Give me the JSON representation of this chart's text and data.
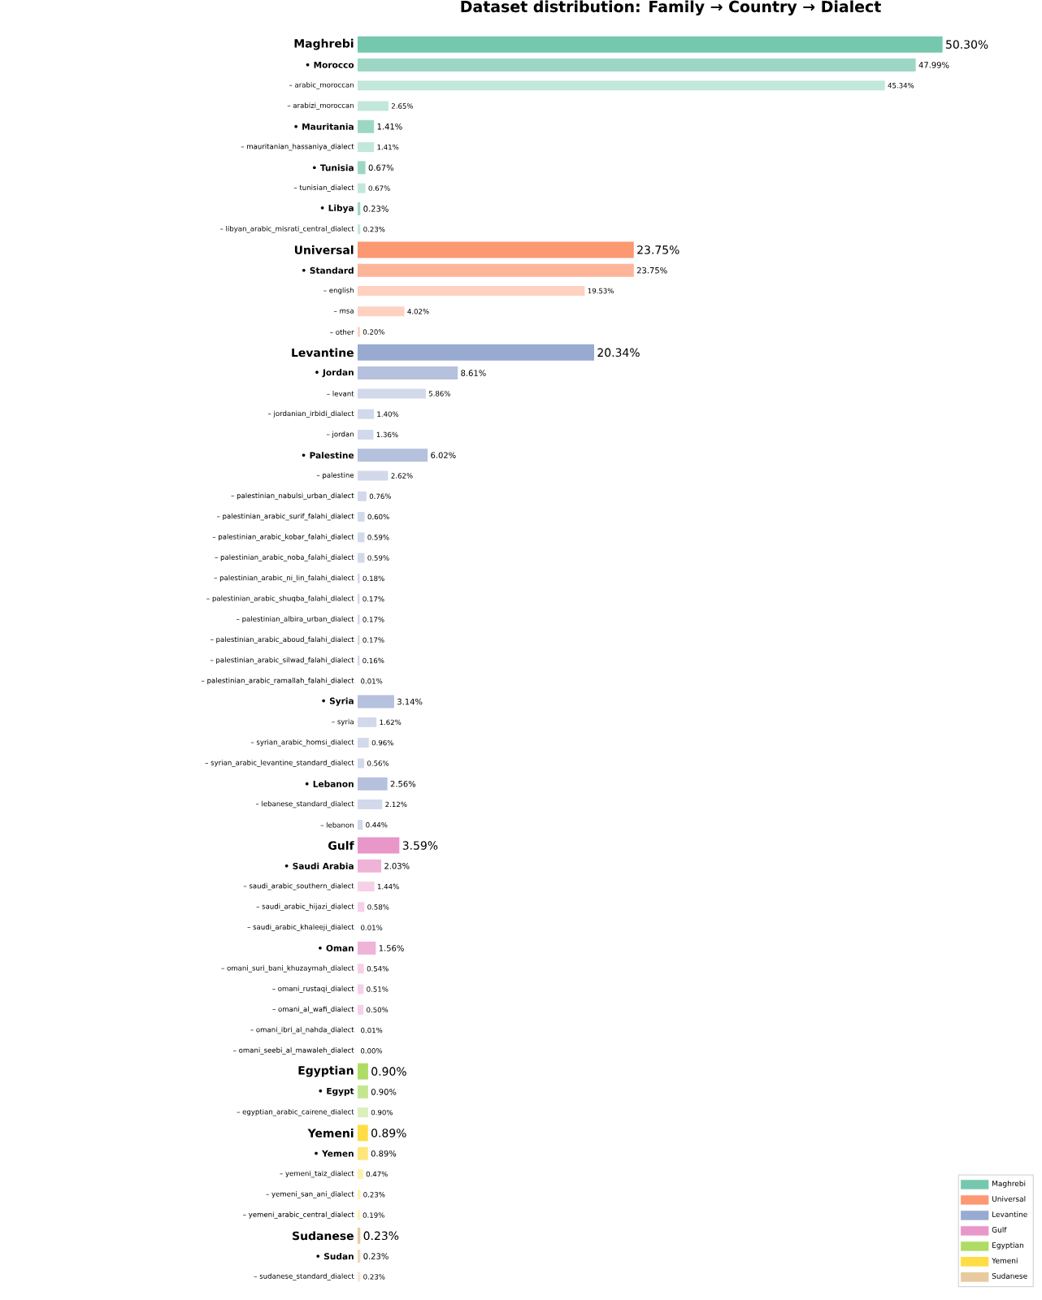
{
  "chart_data": {
    "type": "bar",
    "orientation": "horizontal",
    "title": "Dataset distribution: Family → Country → Dialect",
    "tick_labels": "y",
    "legend": "bottom right",
    "categories": [
      "Maghrebi",
      "• Morocco",
      "– arabic_moroccan",
      "– arabizi_moroccan",
      "• Mauritania",
      "– mauritanian_hassaniya_dialect",
      "• Tunisia",
      "– tunisian_dialect",
      "• Libya",
      "– libyan_arabic_misrati_central_dialect",
      "Universal",
      "• Standard",
      "– english",
      "– msa",
      "– other",
      "Levantine",
      "• Jordan",
      "– levant",
      "– jordanian_irbidi_dialect",
      "– jordan",
      "• Palestine",
      "– palestine",
      "– palestinian_nabulsi_urban_dialect",
      "– palestinian_arabic_surif_falahi_dialect",
      "– palestinian_arabic_kobar_falahi_dialect",
      "– palestinian_arabic_noba_falahi_dialect",
      "– palestinian_arabic_ni_lin_falahi_dialect",
      "– palestinian_arabic_shuqba_falahi_dialect",
      "– palestinian_albira_urban_dialect",
      "– palestinian_arabic_aboud_falahi_dialect",
      "– palestinian_arabic_silwad_falahi_dialect",
      "– palestinian_arabic_ramallah_falahi_dialect",
      "• Syria",
      "– syria",
      "– syrian_arabic_homsi_dialect",
      "– syrian_arabic_levantine_standard_dialect",
      "• Lebanon",
      "– lebanese_standard_dialect",
      "– lebanon",
      "Gulf",
      "• Saudi Arabia",
      "– saudi_arabic_southern_dialect",
      "– saudi_arabic_hijazi_dialect",
      "– saudi_arabic_khaleeji_dialect",
      "• Oman",
      "– omani_suri_bani_khuzaymah_dialect",
      "– omani_rustaqi_dialect",
      "– omani_al_wafi_dialect",
      "– omani_ibri_al_nahda_dialect",
      "– omani_seebi_al_mawaleh_dialect",
      "Egyptian",
      "• Egypt",
      "– egyptian_arabic_cairene_dialect",
      "Yemeni",
      "• Yemen",
      "– yemeni_taiz_dialect",
      "– yemeni_san_ani_dialect",
      "– yemeni_arabic_central_dialect",
      "Sudanese",
      "• Sudan",
      "– sudanese_standard_dialect"
    ],
    "series": [
      {
        "name": "Maghrebi",
        "color": "#75c8ae",
        "values": [
          50.3,
          47.99,
          45.34,
          2.65,
          1.41,
          1.41,
          0.67,
          0.67,
          0.23,
          0.23,
          null,
          null,
          null,
          null,
          null,
          null,
          null,
          null,
          null,
          null,
          null,
          null,
          null,
          null,
          null,
          null,
          null,
          null,
          null,
          null,
          null,
          null,
          null,
          null,
          null,
          null,
          null,
          null,
          null,
          null,
          null,
          null,
          null,
          null,
          null,
          null,
          null,
          null,
          null,
          null,
          null,
          null,
          null,
          null,
          null,
          null,
          null,
          null,
          null,
          null,
          null
        ],
        "colors": [
          "#75c8ae",
          "#9cd7c5",
          "#c2e7db",
          "#c2e7db",
          "#9cd7c5",
          "#c2e7db",
          "#9cd7c5",
          "#c2e7db",
          "#9cd7c5",
          "#c2e7db",
          null,
          null,
          null,
          null,
          null,
          null,
          null,
          null,
          null,
          null,
          null,
          null,
          null,
          null,
          null,
          null,
          null,
          null,
          null,
          null,
          null,
          null,
          null,
          null,
          null,
          null,
          null,
          null,
          null,
          null,
          null,
          null,
          null,
          null,
          null,
          null,
          null,
          null,
          null,
          null,
          null,
          null,
          null,
          null,
          null,
          null,
          null,
          null,
          null,
          null,
          null
        ],
        "value_labels": [
          "50.30%",
          "47.99%",
          "45.34%",
          "2.65%",
          "1.41%",
          "1.41%",
          "0.67%",
          "0.67%",
          "0.23%",
          "0.23%",
          null,
          null,
          null,
          null,
          null,
          null,
          null,
          null,
          null,
          null,
          null,
          null,
          null,
          null,
          null,
          null,
          null,
          null,
          null,
          null,
          null,
          null,
          null,
          null,
          null,
          null,
          null,
          null,
          null,
          null,
          null,
          null,
          null,
          null,
          null,
          null,
          null,
          null,
          null,
          null,
          null,
          null,
          null,
          null,
          null,
          null,
          null,
          null,
          null,
          null,
          null
        ]
      },
      {
        "name": "Universal",
        "color": "#fc9872",
        "values": [
          null,
          null,
          null,
          null,
          null,
          null,
          null,
          null,
          null,
          null,
          23.75,
          23.75,
          19.53,
          4.02,
          0.2,
          null,
          null,
          null,
          null,
          null,
          null,
          null,
          null,
          null,
          null,
          null,
          null,
          null,
          null,
          null,
          null,
          null,
          null,
          null,
          null,
          null,
          null,
          null,
          null,
          null,
          null,
          null,
          null,
          null,
          null,
          null,
          null,
          null,
          null,
          null,
          null,
          null,
          null,
          null,
          null,
          null,
          null,
          null,
          null,
          null,
          null
        ],
        "colors": [
          null,
          null,
          null,
          null,
          null,
          null,
          null,
          null,
          null,
          null,
          "#fc9872",
          "#fdb599",
          "#fed1c0",
          "#fed1c0",
          "#fed1c0",
          null,
          null,
          null,
          null,
          null,
          null,
          null,
          null,
          null,
          null,
          null,
          null,
          null,
          null,
          null,
          null,
          null,
          null,
          null,
          null,
          null,
          null,
          null,
          null,
          null,
          null,
          null,
          null,
          null,
          null,
          null,
          null,
          null,
          null,
          null,
          null,
          null,
          null,
          null,
          null,
          null,
          null,
          null,
          null,
          null,
          null
        ],
        "value_labels": [
          null,
          null,
          null,
          null,
          null,
          null,
          null,
          null,
          null,
          null,
          "23.75%",
          "23.75%",
          "19.53%",
          "4.02%",
          "0.20%",
          null,
          null,
          null,
          null,
          null,
          null,
          null,
          null,
          null,
          null,
          null,
          null,
          null,
          null,
          null,
          null,
          null,
          null,
          null,
          null,
          null,
          null,
          null,
          null,
          null,
          null,
          null,
          null,
          null,
          null,
          null,
          null,
          null,
          null,
          null,
          null,
          null,
          null,
          null,
          null,
          null,
          null,
          null,
          null,
          null,
          null
        ]
      },
      {
        "name": "Levantine",
        "color": "#98aad0",
        "values": [
          null,
          null,
          null,
          null,
          null,
          null,
          null,
          null,
          null,
          null,
          null,
          null,
          null,
          null,
          null,
          20.34,
          8.61,
          5.86,
          1.4,
          1.36,
          6.02,
          2.62,
          0.76,
          0.6,
          0.59,
          0.59,
          0.18,
          0.17,
          0.17,
          0.17,
          0.16,
          0.01,
          3.14,
          1.62,
          0.96,
          0.56,
          2.56,
          2.12,
          0.44,
          null,
          null,
          null,
          null,
          null,
          null,
          null,
          null,
          null,
          null,
          null,
          null,
          null,
          null,
          null,
          null,
          null,
          null,
          null,
          null,
          null,
          null
        ],
        "colors": [
          null,
          null,
          null,
          null,
          null,
          null,
          null,
          null,
          null,
          null,
          null,
          null,
          null,
          null,
          null,
          "#98aad0",
          "#b5c1dd",
          "#d1d9ea",
          "#d1d9ea",
          "#d1d9ea",
          "#b5c1dd",
          "#d1d9ea",
          "#d1d9ea",
          "#d1d9ea",
          "#d1d9ea",
          "#d1d9ea",
          "#d1d9ea",
          "#d1d9ea",
          "#d1d9ea",
          "#d1d9ea",
          "#d1d9ea",
          "#d1d9ea",
          "#b5c1dd",
          "#d1d9ea",
          "#d1d9ea",
          "#d1d9ea",
          "#b5c1dd",
          "#d1d9ea",
          "#d1d9ea",
          null,
          null,
          null,
          null,
          null,
          null,
          null,
          null,
          null,
          null,
          null,
          null,
          null,
          null,
          null,
          null,
          null,
          null,
          null,
          null,
          null,
          null
        ],
        "value_labels": [
          null,
          null,
          null,
          null,
          null,
          null,
          null,
          null,
          null,
          null,
          null,
          null,
          null,
          null,
          null,
          "20.34%",
          "8.61%",
          "5.86%",
          "1.40%",
          "1.36%",
          "6.02%",
          "2.62%",
          "0.76%",
          "0.60%",
          "0.59%",
          "0.59%",
          "0.18%",
          "0.17%",
          "0.17%",
          "0.17%",
          "0.16%",
          "0.01%",
          "3.14%",
          "1.62%",
          "0.96%",
          "0.56%",
          "2.56%",
          "2.12%",
          "0.44%",
          null,
          null,
          null,
          null,
          null,
          null,
          null,
          null,
          null,
          null,
          null,
          null,
          null,
          null,
          null,
          null,
          null,
          null,
          null,
          null,
          null,
          null
        ]
      },
      {
        "name": "Gulf",
        "color": "#e996c9",
        "values": [
          null,
          null,
          null,
          null,
          null,
          null,
          null,
          null,
          null,
          null,
          null,
          null,
          null,
          null,
          null,
          null,
          null,
          null,
          null,
          null,
          null,
          null,
          null,
          null,
          null,
          null,
          null,
          null,
          null,
          null,
          null,
          null,
          null,
          null,
          null,
          null,
          null,
          null,
          null,
          3.59,
          2.03,
          1.44,
          0.58,
          0.01,
          1.56,
          0.54,
          0.51,
          0.5,
          0.01,
          0.0,
          null,
          null,
          null,
          null,
          null,
          null,
          null,
          null,
          null,
          null,
          null
        ],
        "colors": [
          null,
          null,
          null,
          null,
          null,
          null,
          null,
          null,
          null,
          null,
          null,
          null,
          null,
          null,
          null,
          null,
          null,
          null,
          null,
          null,
          null,
          null,
          null,
          null,
          null,
          null,
          null,
          null,
          null,
          null,
          null,
          null,
          null,
          null,
          null,
          null,
          null,
          null,
          null,
          "#e996c9",
          "#efb3d8",
          "#f5d0e7",
          "#f5d0e7",
          "#f5d0e7",
          "#efb3d8",
          "#f5d0e7",
          "#f5d0e7",
          "#f5d0e7",
          "#f5d0e7",
          "#f5d0e7",
          null,
          null,
          null,
          null,
          null,
          null,
          null,
          null,
          null,
          null,
          null
        ],
        "value_labels": [
          null,
          null,
          null,
          null,
          null,
          null,
          null,
          null,
          null,
          null,
          null,
          null,
          null,
          null,
          null,
          null,
          null,
          null,
          null,
          null,
          null,
          null,
          null,
          null,
          null,
          null,
          null,
          null,
          null,
          null,
          null,
          null,
          null,
          null,
          null,
          null,
          null,
          null,
          null,
          "3.59%",
          "2.03%",
          "1.44%",
          "0.58%",
          "0.01%",
          "1.56%",
          "0.54%",
          "0.51%",
          "0.50%",
          "0.01%",
          "0.00%",
          null,
          null,
          null,
          null,
          null,
          null,
          null,
          null,
          null,
          null,
          null
        ]
      },
      {
        "name": "Egyptian",
        "color": "#afdc65",
        "values": [
          null,
          null,
          null,
          null,
          null,
          null,
          null,
          null,
          null,
          null,
          null,
          null,
          null,
          null,
          null,
          null,
          null,
          null,
          null,
          null,
          null,
          null,
          null,
          null,
          null,
          null,
          null,
          null,
          null,
          null,
          null,
          null,
          null,
          null,
          null,
          null,
          null,
          null,
          null,
          null,
          null,
          null,
          null,
          null,
          null,
          null,
          null,
          null,
          null,
          null,
          0.9,
          0.9,
          0.9,
          null,
          null,
          null,
          null,
          null,
          null,
          null,
          null
        ],
        "colors": [
          null,
          null,
          null,
          null,
          null,
          null,
          null,
          null,
          null,
          null,
          null,
          null,
          null,
          null,
          null,
          null,
          null,
          null,
          null,
          null,
          null,
          null,
          null,
          null,
          null,
          null,
          null,
          null,
          null,
          null,
          null,
          null,
          null,
          null,
          null,
          null,
          null,
          null,
          null,
          null,
          null,
          null,
          null,
          null,
          null,
          null,
          null,
          null,
          null,
          null,
          "#afdc65",
          "#c5e690",
          "#dbefbb",
          null,
          null,
          null,
          null,
          null,
          null,
          null,
          null
        ],
        "value_labels": [
          null,
          null,
          null,
          null,
          null,
          null,
          null,
          null,
          null,
          null,
          null,
          null,
          null,
          null,
          null,
          null,
          null,
          null,
          null,
          null,
          null,
          null,
          null,
          null,
          null,
          null,
          null,
          null,
          null,
          null,
          null,
          null,
          null,
          null,
          null,
          null,
          null,
          null,
          null,
          null,
          null,
          null,
          null,
          null,
          null,
          null,
          null,
          null,
          null,
          null,
          "0.90%",
          "0.90%",
          "0.90%",
          null,
          null,
          null,
          null,
          null,
          null,
          null,
          null
        ]
      },
      {
        "name": "Yemeni",
        "color": "#ffdd44",
        "values": [
          null,
          null,
          null,
          null,
          null,
          null,
          null,
          null,
          null,
          null,
          null,
          null,
          null,
          null,
          null,
          null,
          null,
          null,
          null,
          null,
          null,
          null,
          null,
          null,
          null,
          null,
          null,
          null,
          null,
          null,
          null,
          null,
          null,
          null,
          null,
          null,
          null,
          null,
          null,
          null,
          null,
          null,
          null,
          null,
          null,
          null,
          null,
          null,
          null,
          null,
          null,
          null,
          null,
          0.89,
          0.89,
          0.47,
          0.23,
          0.19,
          null,
          null,
          null
        ],
        "colors": [
          null,
          null,
          null,
          null,
          null,
          null,
          null,
          null,
          null,
          null,
          null,
          null,
          null,
          null,
          null,
          null,
          null,
          null,
          null,
          null,
          null,
          null,
          null,
          null,
          null,
          null,
          null,
          null,
          null,
          null,
          null,
          null,
          null,
          null,
          null,
          null,
          null,
          null,
          null,
          null,
          null,
          null,
          null,
          null,
          null,
          null,
          null,
          null,
          null,
          null,
          null,
          null,
          null,
          "#ffdd44",
          "#ffe678",
          "#fff0ac",
          "#fff0ac",
          "#fff0ac",
          null,
          null,
          null
        ],
        "value_labels": [
          null,
          null,
          null,
          null,
          null,
          null,
          null,
          null,
          null,
          null,
          null,
          null,
          null,
          null,
          null,
          null,
          null,
          null,
          null,
          null,
          null,
          null,
          null,
          null,
          null,
          null,
          null,
          null,
          null,
          null,
          null,
          null,
          null,
          null,
          null,
          null,
          null,
          null,
          null,
          null,
          null,
          null,
          null,
          null,
          null,
          null,
          null,
          null,
          null,
          null,
          null,
          null,
          null,
          "0.89%",
          "0.89%",
          "0.47%",
          "0.23%",
          "0.19%",
          null,
          null,
          null
        ]
      },
      {
        "name": "Sudanese",
        "color": "#e7ca9f",
        "values": [
          null,
          null,
          null,
          null,
          null,
          null,
          null,
          null,
          null,
          null,
          null,
          null,
          null,
          null,
          null,
          null,
          null,
          null,
          null,
          null,
          null,
          null,
          null,
          null,
          null,
          null,
          null,
          null,
          null,
          null,
          null,
          null,
          null,
          null,
          null,
          null,
          null,
          null,
          null,
          null,
          null,
          null,
          null,
          null,
          null,
          null,
          null,
          null,
          null,
          null,
          null,
          null,
          null,
          null,
          null,
          null,
          null,
          null,
          0.23,
          0.23,
          0.23
        ],
        "colors": [
          null,
          null,
          null,
          null,
          null,
          null,
          null,
          null,
          null,
          null,
          null,
          null,
          null,
          null,
          null,
          null,
          null,
          null,
          null,
          null,
          null,
          null,
          null,
          null,
          null,
          null,
          null,
          null,
          null,
          null,
          null,
          null,
          null,
          null,
          null,
          null,
          null,
          null,
          null,
          null,
          null,
          null,
          null,
          null,
          null,
          null,
          null,
          null,
          null,
          null,
          null,
          null,
          null,
          null,
          null,
          null,
          null,
          null,
          "#e7ca9f",
          "#eed9b9",
          "#f5e7d4"
        ],
        "value_labels": [
          null,
          null,
          null,
          null,
          null,
          null,
          null,
          null,
          null,
          null,
          null,
          null,
          null,
          null,
          null,
          null,
          null,
          null,
          null,
          null,
          null,
          null,
          null,
          null,
          null,
          null,
          null,
          null,
          null,
          null,
          null,
          null,
          null,
          null,
          null,
          null,
          null,
          null,
          null,
          null,
          null,
          null,
          null,
          null,
          null,
          null,
          null,
          null,
          null,
          null,
          null,
          null,
          null,
          null,
          null,
          null,
          null,
          null,
          "0.23%",
          "0.23%",
          "0.23%"
        ]
      }
    ]
  }
}
